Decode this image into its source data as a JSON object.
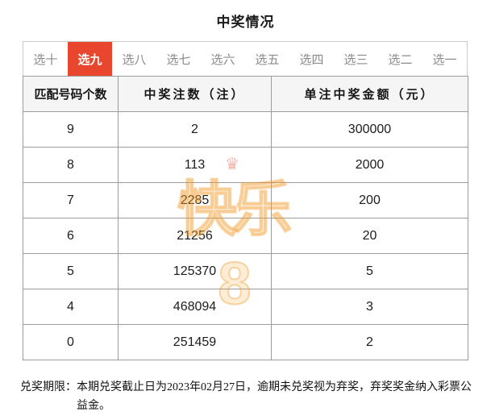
{
  "title": "中奖情况",
  "tabs": {
    "items": [
      {
        "label": "选十",
        "active": false
      },
      {
        "label": "选九",
        "active": true
      },
      {
        "label": "选八",
        "active": false
      },
      {
        "label": "选七",
        "active": false
      },
      {
        "label": "选六",
        "active": false
      },
      {
        "label": "选五",
        "active": false
      },
      {
        "label": "选四",
        "active": false
      },
      {
        "label": "选三",
        "active": false
      },
      {
        "label": "选二",
        "active": false
      },
      {
        "label": "选一",
        "active": false
      }
    ]
  },
  "table": {
    "headers": [
      "匹配号码个数",
      "中奖注数（注）",
      "单注中奖金额（元）"
    ],
    "rows": [
      [
        "9",
        "2",
        "300000"
      ],
      [
        "8",
        "113",
        "2000"
      ],
      [
        "7",
        "2285",
        "200"
      ],
      [
        "6",
        "21256",
        "20"
      ],
      [
        "5",
        "125370",
        "5"
      ],
      [
        "4",
        "468094",
        "3"
      ],
      [
        "0",
        "251459",
        "2"
      ]
    ]
  },
  "watermark": {
    "text": "快乐8",
    "crown_glyph": "♛"
  },
  "footer": {
    "label": "兑奖期限：",
    "text": "本期兑奖截止日为2023年02月27日，逾期未兑奖视为弃奖，弃奖奖金纳入彩票公益金。"
  },
  "colors": {
    "accent": "#e8472e",
    "header_bg": "#f5f5f5",
    "table_border": "#9c9c9c",
    "tab_border": "#cccccc",
    "tab_text": "#8b8b8b",
    "cell_text": "#1c1c1c",
    "watermark_orange": "#f6a12c"
  }
}
